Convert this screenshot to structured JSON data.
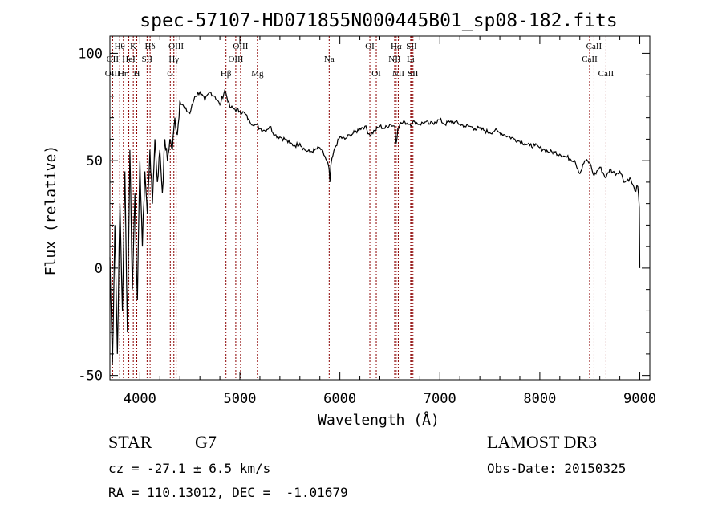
{
  "chart_data": {
    "type": "line",
    "title": "spec-57107-HD071855N000445B01_sp08-182.fits",
    "xlabel": "Wavelength (Å)",
    "ylabel": "Flux (relative)",
    "xlim": [
      3700,
      9100
    ],
    "ylim": [
      -52,
      108
    ],
    "xticks": [
      4000,
      5000,
      6000,
      7000,
      8000,
      9000
    ],
    "xtick_labels": [
      "4000",
      "5000",
      "6000",
      "7000",
      "8000",
      "9000"
    ],
    "yticks": [
      -50,
      0,
      50,
      100
    ],
    "ytick_labels": [
      "-50",
      "0",
      "50",
      "100"
    ],
    "grid": false,
    "series": [
      {
        "name": "spectrum",
        "x": [
          3700,
          3725,
          3750,
          3775,
          3800,
          3825,
          3850,
          3875,
          3900,
          3925,
          3950,
          3975,
          4000,
          4025,
          4050,
          4075,
          4100,
          4125,
          4150,
          4175,
          4200,
          4225,
          4250,
          4275,
          4300,
          4325,
          4350,
          4375,
          4400,
          4450,
          4500,
          4550,
          4600,
          4650,
          4700,
          4750,
          4800,
          4850,
          4900,
          4950,
          5000,
          5050,
          5100,
          5150,
          5200,
          5250,
          5300,
          5350,
          5400,
          5450,
          5500,
          5550,
          5600,
          5650,
          5700,
          5750,
          5800,
          5850,
          5890,
          5900,
          5910,
          5950,
          6000,
          6050,
          6100,
          6150,
          6200,
          6250,
          6300,
          6350,
          6400,
          6450,
          6500,
          6550,
          6563,
          6580,
          6600,
          6650,
          6700,
          6750,
          6800,
          6850,
          6900,
          6950,
          7000,
          7050,
          7100,
          7150,
          7200,
          7250,
          7300,
          7350,
          7400,
          7450,
          7500,
          7550,
          7600,
          7650,
          7700,
          7750,
          7800,
          7850,
          7900,
          7950,
          8000,
          8050,
          8100,
          8150,
          8200,
          8250,
          8300,
          8350,
          8400,
          8450,
          8500,
          8542,
          8600,
          8662,
          8700,
          8750,
          8800,
          8850,
          8900,
          8950,
          8980,
          8995,
          9000
        ],
        "y": [
          5,
          -45,
          20,
          -40,
          30,
          -20,
          45,
          -30,
          55,
          -10,
          35,
          -15,
          50,
          10,
          45,
          25,
          55,
          30,
          60,
          40,
          55,
          35,
          60,
          50,
          60,
          55,
          70,
          62,
          78,
          74,
          72,
          80,
          82,
          78,
          82,
          80,
          76,
          83,
          75,
          74,
          73,
          72,
          68,
          67,
          65,
          64,
          66,
          62,
          61,
          60,
          58,
          57,
          58,
          55,
          54,
          55,
          56,
          52,
          47,
          40,
          48,
          56,
          61,
          60,
          62,
          63,
          65,
          66,
          62,
          64,
          66,
          65,
          67,
          66,
          58,
          65,
          67,
          68,
          67,
          68,
          67,
          68,
          67,
          68,
          69,
          67,
          68,
          68,
          67,
          66,
          66,
          65,
          65,
          64,
          63,
          64,
          63,
          62,
          61,
          60,
          59,
          58,
          57,
          57,
          56,
          55,
          54,
          54,
          53,
          52,
          51,
          50,
          44,
          50,
          49,
          43,
          47,
          42,
          46,
          44,
          45,
          40,
          42,
          36,
          38,
          28,
          0
        ]
      }
    ],
    "lines": [
      {
        "label": "Hθ",
        "x": 3798,
        "row": 1
      },
      {
        "label": "OII",
        "x": 3727,
        "row": 2
      },
      {
        "label": "OIII",
        "x": 3726,
        "row": 3
      },
      {
        "label": "Hη",
        "x": 3835,
        "row": 3
      },
      {
        "label": "K",
        "x": 3934,
        "row": 1
      },
      {
        "label": "HeI",
        "x": 3889,
        "row": 2
      },
      {
        "label": "H",
        "x": 3969,
        "row": 3
      },
      {
        "label": "SII",
        "x": 4072,
        "row": 2
      },
      {
        "label": "Hδ",
        "x": 4102,
        "row": 1
      },
      {
        "label": "OIII",
        "x": 4363,
        "row": 1
      },
      {
        "label": "Hγ",
        "x": 4340,
        "row": 2
      },
      {
        "label": "G",
        "x": 4304,
        "row": 3
      },
      {
        "label": "Hβ",
        "x": 4861,
        "row": 3
      },
      {
        "label": "OIII",
        "x": 4959,
        "row": 2
      },
      {
        "label": "OIII",
        "x": 5007,
        "row": 1
      },
      {
        "label": "Mg",
        "x": 5175,
        "row": 3
      },
      {
        "label": "Na",
        "x": 5893,
        "row": 2
      },
      {
        "label": "OI",
        "x": 6300,
        "row": 1
      },
      {
        "label": "OI",
        "x": 6364,
        "row": 3
      },
      {
        "label": "Hα",
        "x": 6563,
        "row": 1
      },
      {
        "label": "NII",
        "x": 6548,
        "row": 2
      },
      {
        "label": "NII",
        "x": 6584,
        "row": 3
      },
      {
        "label": "SII",
        "x": 6717,
        "row": 1
      },
      {
        "label": "Li",
        "x": 6708,
        "row": 2
      },
      {
        "label": "SII",
        "x": 6731,
        "row": 3
      },
      {
        "label": "CaII",
        "x": 8542,
        "row": 1
      },
      {
        "label": "CaII",
        "x": 8498,
        "row": 2
      },
      {
        "label": "CaII",
        "x": 8662,
        "row": 3
      }
    ]
  },
  "info": {
    "class_label": "STAR",
    "subclass": "G7",
    "survey": "LAMOST DR3",
    "cz": "cz = -27.1 ± 6.5 km/s",
    "obs_date": "Obs-Date: 20150325",
    "coords": "RA = 110.13012, DEC =  -1.01679"
  }
}
